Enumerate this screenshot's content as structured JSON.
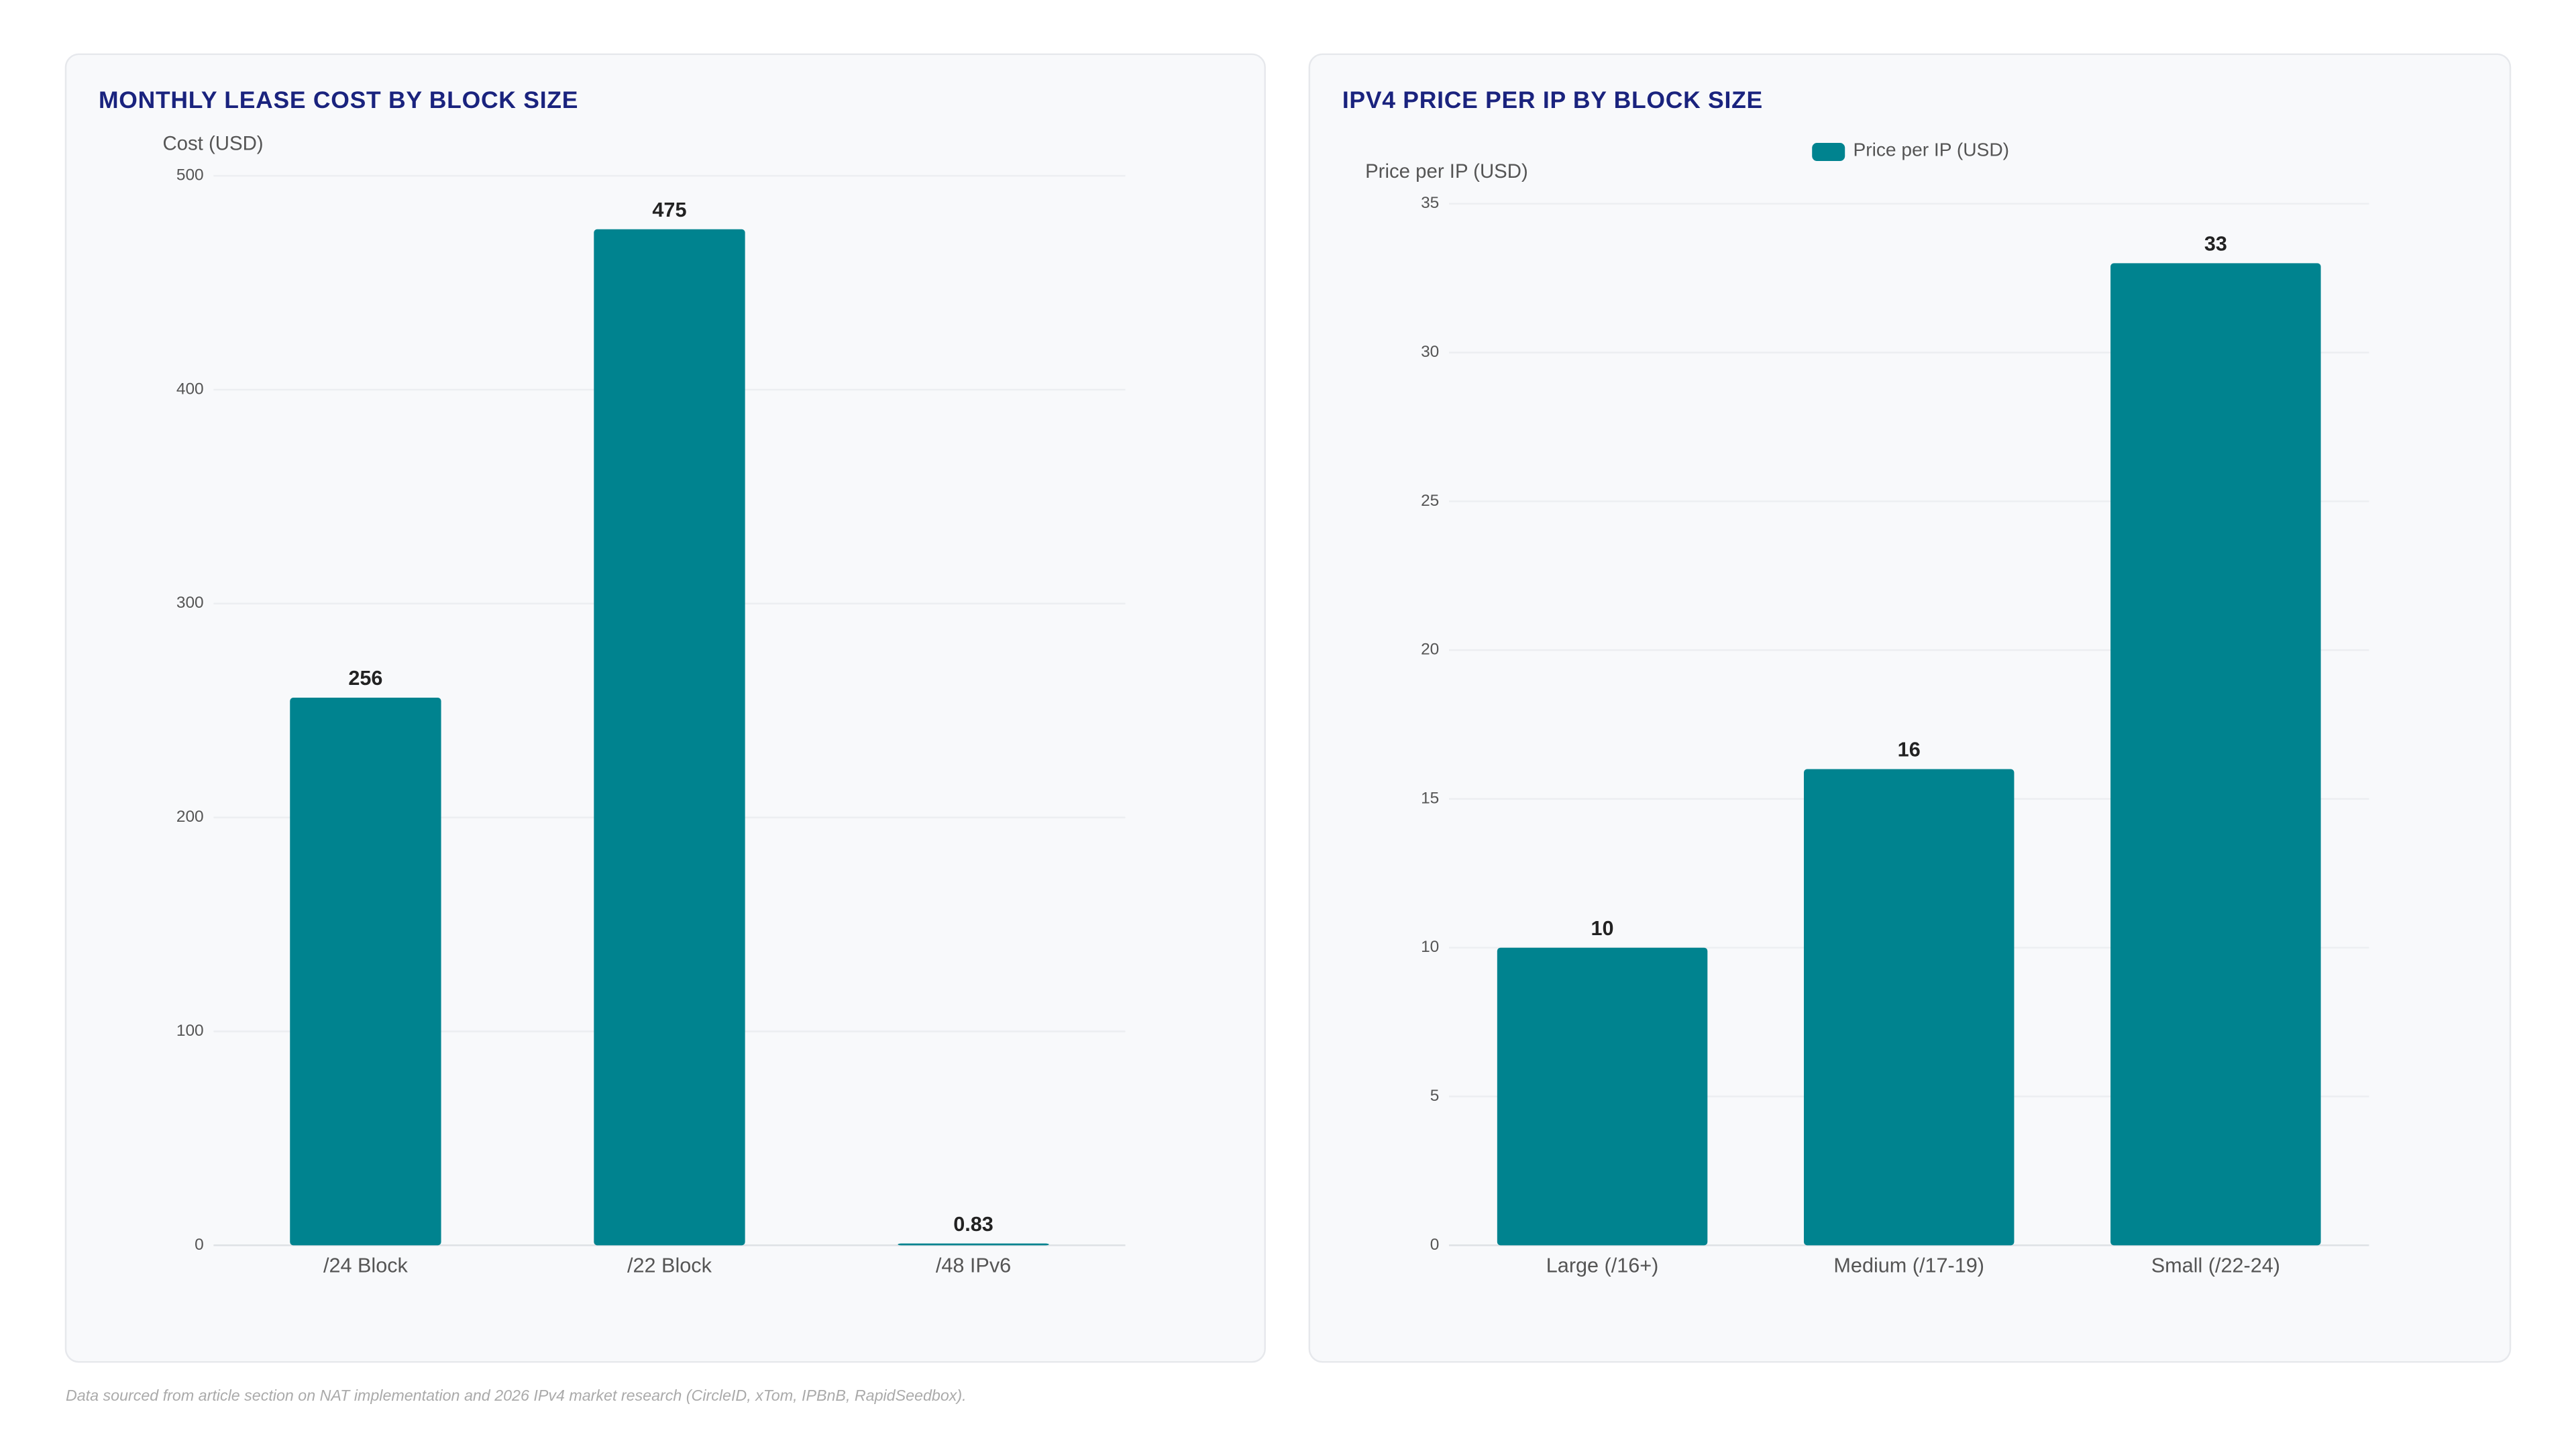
{
  "chart_data": [
    {
      "type": "bar",
      "title": "MONTHLY LEASE COST BY BLOCK SIZE",
      "y_label": "Cost (USD)",
      "categories": [
        "/24 Block",
        "/22 Block",
        "/48 IPv6"
      ],
      "values": [
        256,
        475,
        0.83
      ],
      "color": "#00838f",
      "ylim": [
        0,
        500
      ],
      "yticks": [
        0,
        100,
        200,
        300,
        400,
        500
      ],
      "grid": true
    },
    {
      "type": "bar",
      "title": "IPV4 PRICE PER IP BY BLOCK SIZE",
      "y_label": "Price per IP (USD)",
      "categories": [
        "Large (/16+)",
        "Medium (/17-19)",
        "Small (/22-24)"
      ],
      "series": [
        {
          "name": "Price per IP (USD)",
          "color": "#00838f",
          "values": [
            10,
            16,
            33
          ]
        }
      ],
      "ylim": [
        0,
        35
      ],
      "yticks": [
        0,
        5,
        10,
        15,
        20,
        25,
        30,
        35
      ],
      "grid": true,
      "legend": "top"
    }
  ],
  "footer": "Data sourced from article section on NAT implementation and 2026 IPv4 market research (CircleID, xTom, IPBnB, RapidSeedbox)."
}
